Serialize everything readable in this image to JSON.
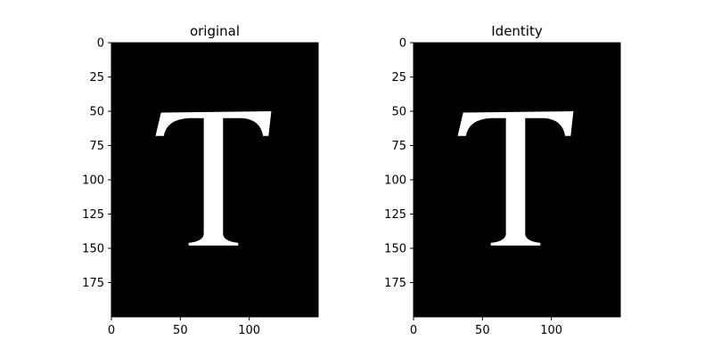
{
  "chart_data": [
    {
      "type": "image",
      "title": "original",
      "xlim": [
        0,
        150
      ],
      "ylim": [
        200,
        0
      ],
      "y_inverted": true,
      "xticks": [
        0,
        50,
        100
      ],
      "yticks": [
        0,
        25,
        50,
        75,
        100,
        125,
        150,
        175
      ],
      "background": "#000000",
      "glyph": "T",
      "glyph_color": "#ffffff",
      "glyph_extent": {
        "x": [
          32,
          116
        ],
        "y": [
          50,
          148
        ]
      }
    },
    {
      "type": "image",
      "title": "Identity",
      "xlim": [
        0,
        150
      ],
      "ylim": [
        200,
        0
      ],
      "y_inverted": true,
      "xticks": [
        0,
        50,
        100
      ],
      "yticks": [
        0,
        25,
        50,
        75,
        100,
        125,
        150,
        175
      ],
      "background": "#000000",
      "glyph": "T",
      "glyph_color": "#ffffff",
      "glyph_extent": {
        "x": [
          32,
          116
        ],
        "y": [
          50,
          148
        ]
      }
    }
  ]
}
